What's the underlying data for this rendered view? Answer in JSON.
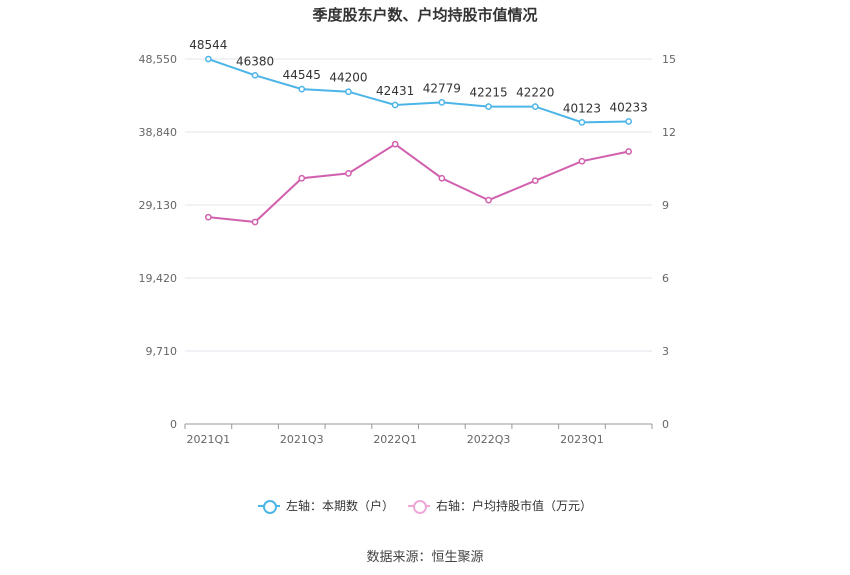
{
  "title": "季度股东户数、户均持股市值情况",
  "source": "数据来源：恒生聚源",
  "colors": {
    "left_series": "#4cb5e8",
    "right_series": "#d160ae",
    "grid": "#e4e4ec",
    "axis": "#999999",
    "tick_text": "#666666"
  },
  "legend": [
    {
      "label": "左轴：本期数（户）",
      "color": "#4cb5e8"
    },
    {
      "label": "右轴：户均持股市值（万元）",
      "color": "#f0a6d6"
    }
  ],
  "chart_data": {
    "type": "line",
    "title": "季度股东户数、户均持股市值情况",
    "x": [
      "2021Q1",
      "2021Q2",
      "2021Q3",
      "2021Q4",
      "2022Q1",
      "2022Q2",
      "2022Q3",
      "2022Q4",
      "2023Q1",
      "2023Q2"
    ],
    "x_tick_labels": [
      "2021Q1",
      "2021Q3",
      "2022Q1",
      "2022Q3",
      "2023Q1"
    ],
    "y_left": {
      "ticks": [
        "0",
        "9,710",
        "19,420",
        "29,130",
        "38,840",
        "48,550"
      ],
      "lim": [
        0,
        48550
      ]
    },
    "y_right": {
      "ticks": [
        "0",
        "3",
        "6",
        "9",
        "12",
        "15"
      ],
      "lim": [
        0,
        15
      ]
    },
    "grid": true,
    "legend_position": "bottom",
    "series": [
      {
        "name": "左轴：本期数（户）",
        "axis": "left",
        "values": [
          48544,
          46380,
          44545,
          44200,
          42431,
          42779,
          42215,
          42220,
          40123,
          40233
        ],
        "labels": [
          "48544",
          "46380",
          "44545",
          "44200",
          "42431",
          "42779",
          "42215",
          "42220",
          "40123",
          "40233"
        ]
      },
      {
        "name": "右轴：户均持股市值（万元）",
        "axis": "right",
        "values": [
          8.5,
          8.3,
          10.1,
          10.3,
          11.5,
          10.1,
          9.2,
          10.0,
          10.8,
          11.2
        ]
      }
    ]
  }
}
